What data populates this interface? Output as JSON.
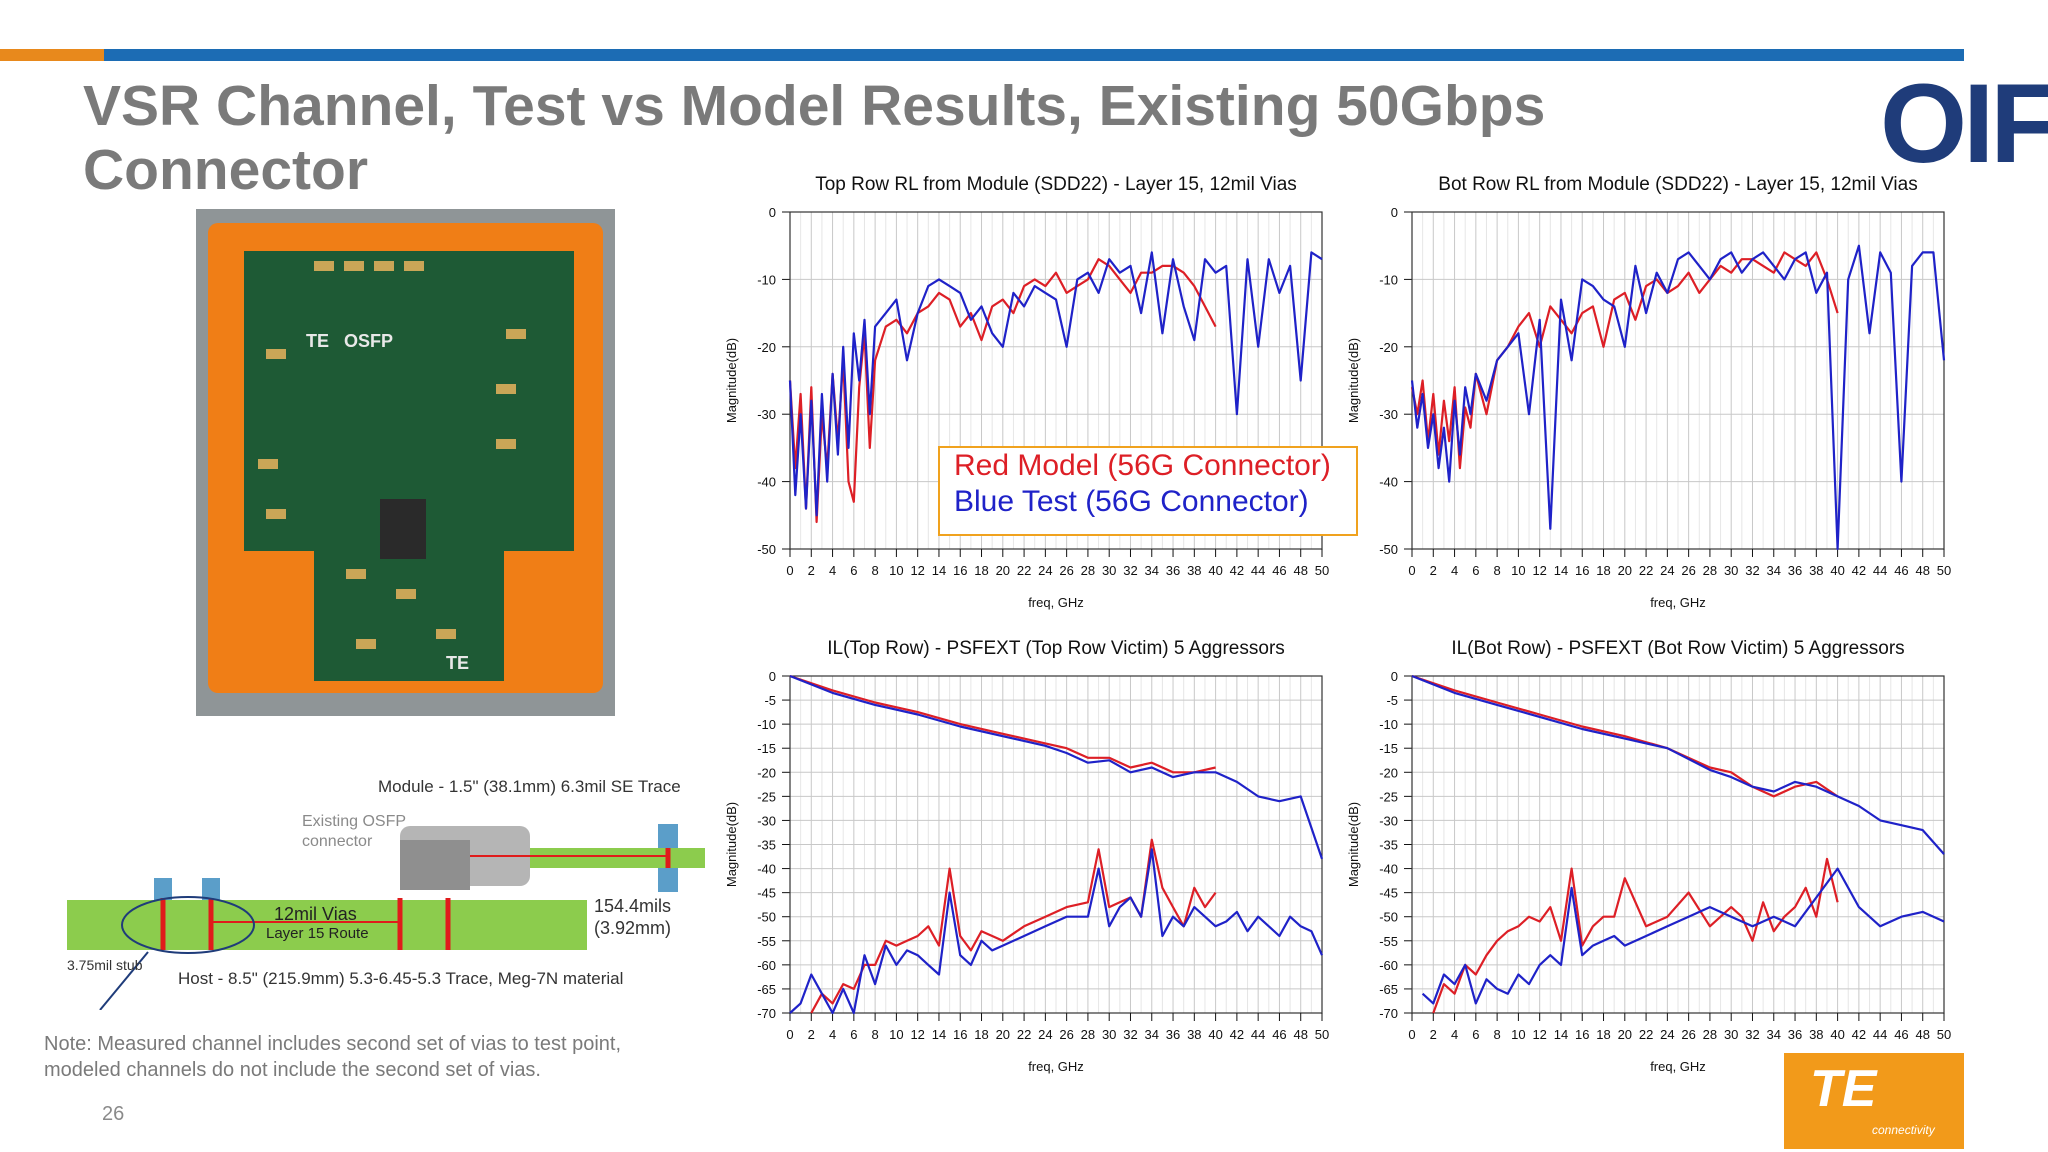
{
  "title": "VSR Channel, Test vs Model Results, Existing 50Gbps Connector",
  "logo_text": "OIF",
  "page_number": "26",
  "note_lines": [
    "Note: Measured channel includes second set of vias to test point,",
    "modeled channels do not include the second set of vias."
  ],
  "legend": {
    "red": "Red Model (56G Connector)",
    "blue": "Blue Test (56G Connector)"
  },
  "te_logo": {
    "mark": "TE",
    "word": "connectivity"
  },
  "photo_labels": {
    "osfp": "OSFP",
    "te": "TE"
  },
  "diagram": {
    "module_label": "Module - 1.5\" (38.1mm) 6.3mil SE Trace",
    "connector_label_1": "Existing OSFP",
    "connector_label_2": "connector",
    "vias_label": "12mil Vias",
    "route_label": "Layer 15 Route",
    "thickness_1": "154.4mils",
    "thickness_2": "(3.92mm)",
    "stub_label": "3.75mil stub",
    "host_label": "Host - 8.5\" (215.9mm) 5.3-6.45-5.3 Trace, Meg-7N material"
  },
  "colors": {
    "red": "#dd1f26",
    "blue": "#1f22c8",
    "orange": "#e8891c",
    "blue_bar": "#1c6cb4",
    "title_gray": "#7a7a7a",
    "oif_navy": "#1f3c7a"
  },
  "chart_data": [
    {
      "type": "line",
      "title": "Top Row RL from Module (SDD22) - Layer 15, 12mil Vias",
      "xlabel": "freq, GHz",
      "ylabel": "Magnitude(dB)",
      "xlim": [
        0,
        50
      ],
      "ylim": [
        -50,
        0
      ],
      "xticks": [
        0,
        2,
        4,
        6,
        8,
        10,
        12,
        14,
        16,
        18,
        20,
        22,
        24,
        26,
        28,
        30,
        32,
        34,
        36,
        38,
        40,
        42,
        44,
        46,
        48,
        50
      ],
      "yticks": [
        0,
        -10,
        -20,
        -30,
        -40,
        -50
      ],
      "grid": true,
      "series": [
        {
          "color": "red",
          "x": [
            0,
            0.5,
            1,
            1.5,
            2,
            2.5,
            3,
            3.5,
            4,
            4.5,
            5,
            5.5,
            6,
            6.5,
            7,
            7.5,
            8,
            9,
            10,
            11,
            12,
            13,
            14,
            15,
            16,
            17,
            18,
            19,
            20,
            21,
            22,
            23,
            24,
            25,
            26,
            27,
            28,
            29,
            30,
            31,
            32,
            33,
            34,
            35,
            36,
            37,
            38,
            39,
            40
          ],
          "y": [
            -25,
            -38,
            -27,
            -44,
            -26,
            -46,
            -30,
            -38,
            -24,
            -34,
            -22,
            -40,
            -43,
            -26,
            -18,
            -35,
            -22,
            -17,
            -16,
            -18,
            -15,
            -14,
            -12,
            -13,
            -17,
            -15,
            -19,
            -14,
            -13,
            -15,
            -11,
            -10,
            -11,
            -9,
            -12,
            -11,
            -10,
            -7,
            -8,
            -10,
            -12,
            -9,
            -9,
            -8,
            -8,
            -9,
            -11,
            -14,
            -17
          ]
        },
        {
          "color": "blue",
          "x": [
            0,
            0.5,
            1,
            1.5,
            2,
            2.5,
            3,
            3.5,
            4,
            4.5,
            5,
            5.5,
            6,
            6.5,
            7,
            7.5,
            8,
            9,
            10,
            11,
            12,
            13,
            14,
            15,
            16,
            17,
            18,
            19,
            20,
            21,
            22,
            23,
            24,
            25,
            26,
            27,
            28,
            29,
            30,
            31,
            32,
            33,
            34,
            35,
            36,
            37,
            38,
            39,
            40,
            41,
            42,
            43,
            44,
            45,
            46,
            47,
            48,
            49,
            50
          ],
          "y": [
            -25,
            -42,
            -30,
            -44,
            -28,
            -45,
            -27,
            -40,
            -24,
            -36,
            -20,
            -35,
            -18,
            -25,
            -16,
            -30,
            -17,
            -15,
            -13,
            -22,
            -15,
            -11,
            -10,
            -11,
            -12,
            -16,
            -14,
            -18,
            -20,
            -12,
            -14,
            -11,
            -12,
            -13,
            -20,
            -10,
            -9,
            -12,
            -7,
            -9,
            -8,
            -15,
            -6,
            -18,
            -7,
            -14,
            -19,
            -7,
            -9,
            -8,
            -30,
            -7,
            -20,
            -7,
            -12,
            -8,
            -25,
            -6,
            -7
          ]
        }
      ]
    },
    {
      "type": "line",
      "title": "Bot Row RL from Module (SDD22) - Layer 15, 12mil Vias",
      "xlabel": "freq, GHz",
      "ylabel": "Magnitude(dB)",
      "xlim": [
        0,
        50
      ],
      "ylim": [
        -50,
        0
      ],
      "xticks": [
        0,
        2,
        4,
        6,
        8,
        10,
        12,
        14,
        16,
        18,
        20,
        22,
        24,
        26,
        28,
        30,
        32,
        34,
        36,
        38,
        40,
        42,
        44,
        46,
        48,
        50
      ],
      "yticks": [
        0,
        -10,
        -20,
        -30,
        -40,
        -50
      ],
      "grid": true,
      "series": [
        {
          "color": "red",
          "x": [
            0,
            0.5,
            1,
            1.5,
            2,
            2.5,
            3,
            3.5,
            4,
            4.5,
            5,
            5.5,
            6,
            7,
            8,
            9,
            10,
            11,
            12,
            13,
            14,
            15,
            16,
            17,
            18,
            19,
            20,
            21,
            22,
            23,
            24,
            25,
            26,
            27,
            28,
            29,
            30,
            31,
            32,
            33,
            34,
            35,
            36,
            37,
            38,
            39,
            40
          ],
          "y": [
            -26,
            -30,
            -25,
            -34,
            -27,
            -36,
            -28,
            -34,
            -26,
            -38,
            -29,
            -32,
            -24,
            -30,
            -22,
            -20,
            -17,
            -15,
            -20,
            -14,
            -16,
            -18,
            -15,
            -14,
            -20,
            -13,
            -12,
            -16,
            -11,
            -10,
            -12,
            -11,
            -9,
            -12,
            -10,
            -8,
            -9,
            -7,
            -7,
            -8,
            -9,
            -6,
            -7,
            -8,
            -6,
            -10,
            -15
          ]
        },
        {
          "color": "blue",
          "x": [
            0,
            0.5,
            1,
            1.5,
            2,
            2.5,
            3,
            3.5,
            4,
            4.5,
            5,
            5.5,
            6,
            7,
            8,
            9,
            10,
            11,
            12,
            13,
            14,
            15,
            16,
            17,
            18,
            19,
            20,
            21,
            22,
            23,
            24,
            25,
            26,
            27,
            28,
            29,
            30,
            31,
            32,
            33,
            34,
            35,
            36,
            37,
            38,
            39,
            40,
            41,
            42,
            43,
            44,
            45,
            46,
            47,
            48,
            49,
            50
          ],
          "y": [
            -25,
            -32,
            -27,
            -35,
            -30,
            -38,
            -32,
            -40,
            -28,
            -36,
            -26,
            -30,
            -24,
            -28,
            -22,
            -20,
            -18,
            -30,
            -16,
            -47,
            -13,
            -22,
            -10,
            -11,
            -13,
            -14,
            -20,
            -8,
            -15,
            -9,
            -12,
            -7,
            -6,
            -8,
            -10,
            -7,
            -6,
            -9,
            -7,
            -6,
            -8,
            -10,
            -7,
            -6,
            -12,
            -9,
            -50,
            -10,
            -5,
            -18,
            -6,
            -9,
            -40,
            -8,
            -6,
            -6,
            -22
          ]
        }
      ]
    },
    {
      "type": "line",
      "title": "IL(Top Row) - PSFEXT (Top Row Victim) 5 Aggressors",
      "xlabel": "freq, GHz",
      "ylabel": "Magnitude(dB)",
      "xlim": [
        0,
        50
      ],
      "ylim": [
        -70,
        0
      ],
      "xticks": [
        0,
        2,
        4,
        6,
        8,
        10,
        12,
        14,
        16,
        18,
        20,
        22,
        24,
        26,
        28,
        30,
        32,
        34,
        36,
        38,
        40,
        42,
        44,
        46,
        48,
        50
      ],
      "yticks": [
        0,
        -5,
        -10,
        -15,
        -20,
        -25,
        -30,
        -35,
        -40,
        -45,
        -50,
        -55,
        -60,
        -65,
        -70
      ],
      "grid": true,
      "series": [
        {
          "color": "red",
          "x": [
            0,
            4,
            8,
            12,
            16,
            20,
            24,
            26,
            28,
            30,
            32,
            34,
            36,
            38,
            40
          ],
          "y": [
            0,
            -3,
            -5.5,
            -7.5,
            -10,
            -12,
            -14,
            -15,
            -17,
            -17,
            -19,
            -18,
            -20,
            -20,
            -19
          ]
        },
        {
          "color": "blue",
          "x": [
            0,
            4,
            8,
            12,
            16,
            20,
            24,
            26,
            28,
            30,
            32,
            34,
            36,
            38,
            40,
            42,
            44,
            46,
            48,
            50
          ],
          "y": [
            0,
            -3.5,
            -6,
            -8,
            -10.5,
            -12.5,
            -14.5,
            -16,
            -18,
            -17.5,
            -20,
            -19,
            -21,
            -20,
            -20,
            -22,
            -25,
            -26,
            -25,
            -38
          ]
        },
        {
          "color": "red",
          "x": [
            2,
            3,
            4,
            5,
            6,
            7,
            8,
            9,
            10,
            11,
            12,
            13,
            14,
            15,
            16,
            17,
            18,
            19,
            20,
            22,
            24,
            26,
            28,
            29,
            30,
            31,
            32,
            33,
            34,
            35,
            36,
            37,
            38,
            39,
            40
          ],
          "y": [
            -70,
            -66,
            -68,
            -64,
            -65,
            -60,
            -60,
            -55,
            -56,
            -55,
            -54,
            -52,
            -56,
            -40,
            -54,
            -57,
            -53,
            -54,
            -55,
            -52,
            -50,
            -48,
            -47,
            -36,
            -48,
            -47,
            -46,
            -50,
            -34,
            -44,
            -48,
            -52,
            -44,
            -48,
            -45
          ]
        },
        {
          "color": "blue",
          "x": [
            0,
            1,
            2,
            3,
            4,
            5,
            6,
            7,
            8,
            9,
            10,
            11,
            12,
            13,
            14,
            15,
            16,
            17,
            18,
            19,
            20,
            22,
            24,
            26,
            28,
            29,
            30,
            31,
            32,
            33,
            34,
            35,
            36,
            37,
            38,
            39,
            40,
            41,
            42,
            43,
            44,
            45,
            46,
            47,
            48,
            49,
            50
          ],
          "y": [
            -70,
            -68,
            -62,
            -66,
            -70,
            -65,
            -70,
            -58,
            -64,
            -56,
            -60,
            -57,
            -58,
            -60,
            -62,
            -45,
            -58,
            -60,
            -55,
            -57,
            -56,
            -54,
            -52,
            -50,
            -50,
            -40,
            -52,
            -48,
            -46,
            -50,
            -36,
            -54,
            -50,
            -52,
            -48,
            -50,
            -52,
            -51,
            -49,
            -53,
            -50,
            -52,
            -54,
            -50,
            -52,
            -53,
            -58
          ]
        }
      ]
    },
    {
      "type": "line",
      "title": "IL(Bot Row) - PSFEXT (Bot Row Victim) 5 Aggressors",
      "xlabel": "freq, GHz",
      "ylabel": "Magnitude(dB)",
      "xlim": [
        0,
        50
      ],
      "ylim": [
        -70,
        0
      ],
      "xticks": [
        0,
        2,
        4,
        6,
        8,
        10,
        12,
        14,
        16,
        18,
        20,
        22,
        24,
        26,
        28,
        30,
        32,
        34,
        36,
        38,
        40,
        42,
        44,
        46,
        48,
        50
      ],
      "yticks": [
        0,
        -5,
        -10,
        -15,
        -20,
        -25,
        -30,
        -35,
        -40,
        -45,
        -50,
        -55,
        -60,
        -65,
        -70
      ],
      "grid": true,
      "series": [
        {
          "color": "red",
          "x": [
            0,
            4,
            8,
            12,
            16,
            20,
            24,
            28,
            30,
            32,
            34,
            36,
            38,
            40
          ],
          "y": [
            0,
            -3,
            -5.5,
            -8,
            -10.5,
            -12.5,
            -15,
            -19,
            -20,
            -23,
            -25,
            -23,
            -22,
            -25
          ]
        },
        {
          "color": "blue",
          "x": [
            0,
            4,
            8,
            12,
            16,
            20,
            24,
            28,
            30,
            32,
            34,
            36,
            38,
            40,
            42,
            44,
            46,
            48,
            50
          ],
          "y": [
            0,
            -3.5,
            -6,
            -8.5,
            -11,
            -13,
            -15,
            -19.5,
            -21,
            -23,
            -24,
            -22,
            -23,
            -25,
            -27,
            -30,
            -31,
            -32,
            -37
          ]
        },
        {
          "color": "red",
          "x": [
            2,
            3,
            4,
            5,
            6,
            7,
            8,
            9,
            10,
            11,
            12,
            13,
            14,
            15,
            16,
            17,
            18,
            19,
            20,
            22,
            24,
            26,
            28,
            30,
            31,
            32,
            33,
            34,
            35,
            36,
            37,
            38,
            39,
            40
          ],
          "y": [
            -70,
            -64,
            -66,
            -60,
            -62,
            -58,
            -55,
            -53,
            -52,
            -50,
            -51,
            -48,
            -55,
            -40,
            -56,
            -52,
            -50,
            -50,
            -42,
            -52,
            -50,
            -45,
            -52,
            -48,
            -50,
            -55,
            -47,
            -53,
            -50,
            -48,
            -44,
            -50,
            -38,
            -47
          ]
        },
        {
          "color": "blue",
          "x": [
            1,
            2,
            3,
            4,
            5,
            6,
            7,
            8,
            9,
            10,
            11,
            12,
            13,
            14,
            15,
            16,
            17,
            18,
            19,
            20,
            22,
            24,
            26,
            28,
            30,
            32,
            34,
            36,
            38,
            40,
            42,
            44,
            46,
            48,
            50
          ],
          "y": [
            -66,
            -68,
            -62,
            -64,
            -60,
            -68,
            -63,
            -65,
            -66,
            -62,
            -64,
            -60,
            -58,
            -60,
            -44,
            -58,
            -56,
            -55,
            -54,
            -56,
            -54,
            -52,
            -50,
            -48,
            -50,
            -52,
            -50,
            -52,
            -46,
            -40,
            -48,
            -52,
            -50,
            -49,
            -51
          ]
        }
      ]
    }
  ]
}
